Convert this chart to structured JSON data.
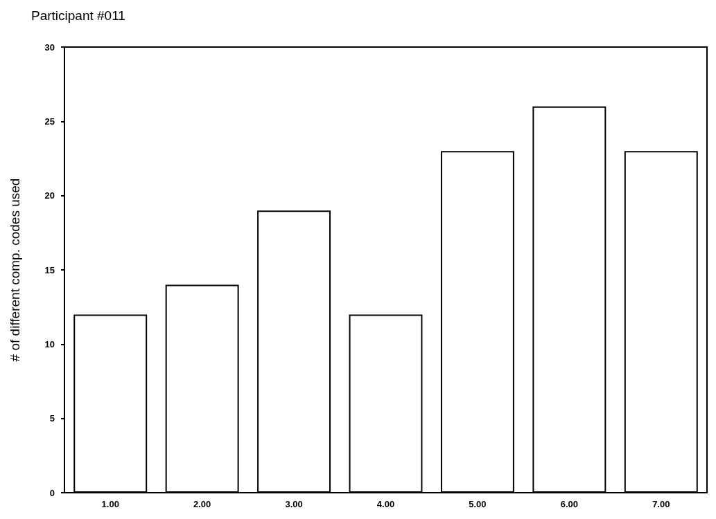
{
  "chart_data": {
    "type": "bar",
    "title": "Participant #011",
    "ylabel": "# of different comp. codes used",
    "categories": [
      "1.00",
      "2.00",
      "3.00",
      "4.00",
      "5.00",
      "6.00",
      "7.00"
    ],
    "values": [
      12,
      14,
      19,
      12,
      23,
      26,
      23
    ],
    "color": "#ffffff",
    "ylim": [
      0,
      30
    ],
    "yticks": [
      0,
      5,
      10,
      15,
      20,
      25,
      30
    ],
    "grid": false
  }
}
